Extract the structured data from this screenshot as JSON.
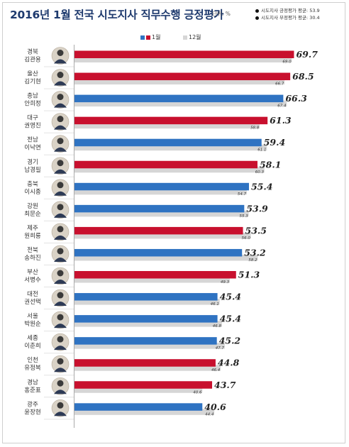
{
  "header": {
    "title": "2016년 1월 전국 시도지사 직무수행 긍정평가",
    "unit": "단위: %",
    "avg_positive": "시도지사 긍정평가 평균: 53.9",
    "avg_negative": "시도지사 부정평가 평균: 30.4"
  },
  "legend": {
    "jan": "1월",
    "dec": "12월"
  },
  "colors": {
    "blue": "#2f73c2",
    "red": "#c8102e",
    "gray": "#d6d6d6",
    "title": "#1e3a6e"
  },
  "chart_data": {
    "type": "bar",
    "orientation": "horizontal",
    "categories": [
      {
        "region": "경북",
        "name": "김관용"
      },
      {
        "region": "울산",
        "name": "김기현"
      },
      {
        "region": "충남",
        "name": "안희정"
      },
      {
        "region": "대구",
        "name": "권영진"
      },
      {
        "region": "전남",
        "name": "이낙연"
      },
      {
        "region": "경기",
        "name": "남경필"
      },
      {
        "region": "충북",
        "name": "이시종"
      },
      {
        "region": "강원",
        "name": "최문순"
      },
      {
        "region": "제주",
        "name": "원희룡"
      },
      {
        "region": "전북",
        "name": "송하진"
      },
      {
        "region": "부산",
        "name": "서병수"
      },
      {
        "region": "대전",
        "name": "권선택"
      },
      {
        "region": "서울",
        "name": "박원순"
      },
      {
        "region": "세종",
        "name": "이춘희"
      },
      {
        "region": "인천",
        "name": "유정복"
      },
      {
        "region": "경남",
        "name": "홍준표"
      },
      {
        "region": "광주",
        "name": "윤장현"
      }
    ],
    "series": [
      {
        "name": "1월",
        "values": [
          69.7,
          68.5,
          66.3,
          61.3,
          59.4,
          58.1,
          55.4,
          53.9,
          53.5,
          53.2,
          51.3,
          45.4,
          45.4,
          45.2,
          44.8,
          43.7,
          40.6
        ],
        "colors": [
          "red",
          "red",
          "blue",
          "red",
          "blue",
          "red",
          "blue",
          "blue",
          "red",
          "blue",
          "red",
          "blue",
          "blue",
          "blue",
          "red",
          "red",
          "blue"
        ]
      },
      {
        "name": "12월",
        "values": [
          69.0,
          66.7,
          67.4,
          58.8,
          61.1,
          60.3,
          54.7,
          55.3,
          56.0,
          58.2,
          49.3,
          46.1,
          46.8,
          47.7,
          46.4,
          40.6,
          44.4
        ]
      }
    ],
    "xlim": [
      0,
      75
    ],
    "grid": false
  }
}
